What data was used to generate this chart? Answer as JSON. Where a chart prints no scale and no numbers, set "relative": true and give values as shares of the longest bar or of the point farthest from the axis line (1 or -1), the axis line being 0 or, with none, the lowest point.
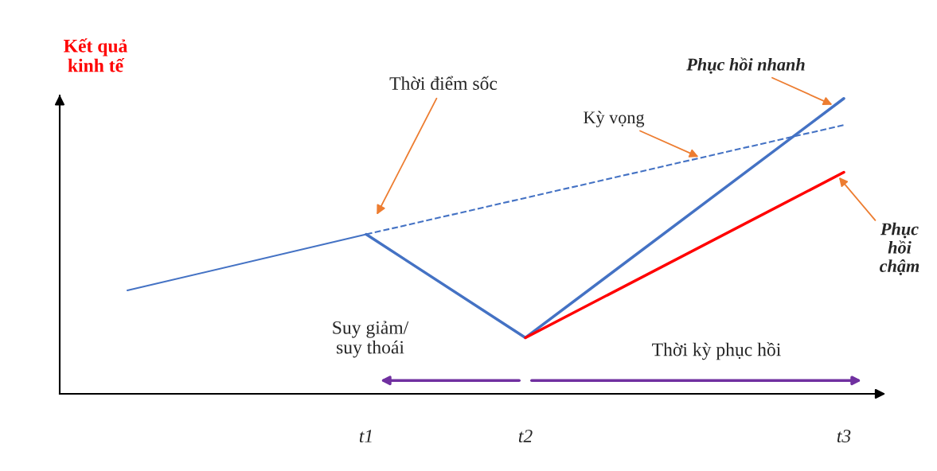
{
  "chart_data": {
    "type": "line",
    "relative": true,
    "ylabel": "Kết quả\nkinh tế",
    "categories": [
      null,
      null,
      null,
      "t1",
      null,
      "t2",
      null,
      null,
      null,
      "t3"
    ],
    "series": [
      {
        "color": "#4472c4",
        "values": [
          0.35,
          null,
          null,
          0.54,
          null,
          null,
          null,
          null,
          null,
          null
        ]
      },
      {
        "color": "#4472c4",
        "values": [
          null,
          null,
          null,
          0.54,
          null,
          0.19,
          null,
          null,
          null,
          1.0
        ],
        "name": "Phục hồi nhanh"
      },
      {
        "color": "#4472c4",
        "values": [
          null,
          null,
          null,
          0.54,
          null,
          null,
          null,
          null,
          null,
          0.91
        ],
        "name": "Kỳ vọng",
        "line_style": "dashed"
      },
      {
        "color": "#ff0000",
        "values": [
          null,
          null,
          null,
          null,
          null,
          0.19,
          null,
          null,
          null,
          0.75
        ],
        "name": "Phục\nhồi\nchậm"
      }
    ],
    "annotations": [
      "Thời điểm sốc",
      "Suy giảm/\nsuy thoái",
      "Thời kỳ phục hồi"
    ],
    "tick_labels": "x",
    "grid": false,
    "legend": false,
    "marker": "none"
  }
}
